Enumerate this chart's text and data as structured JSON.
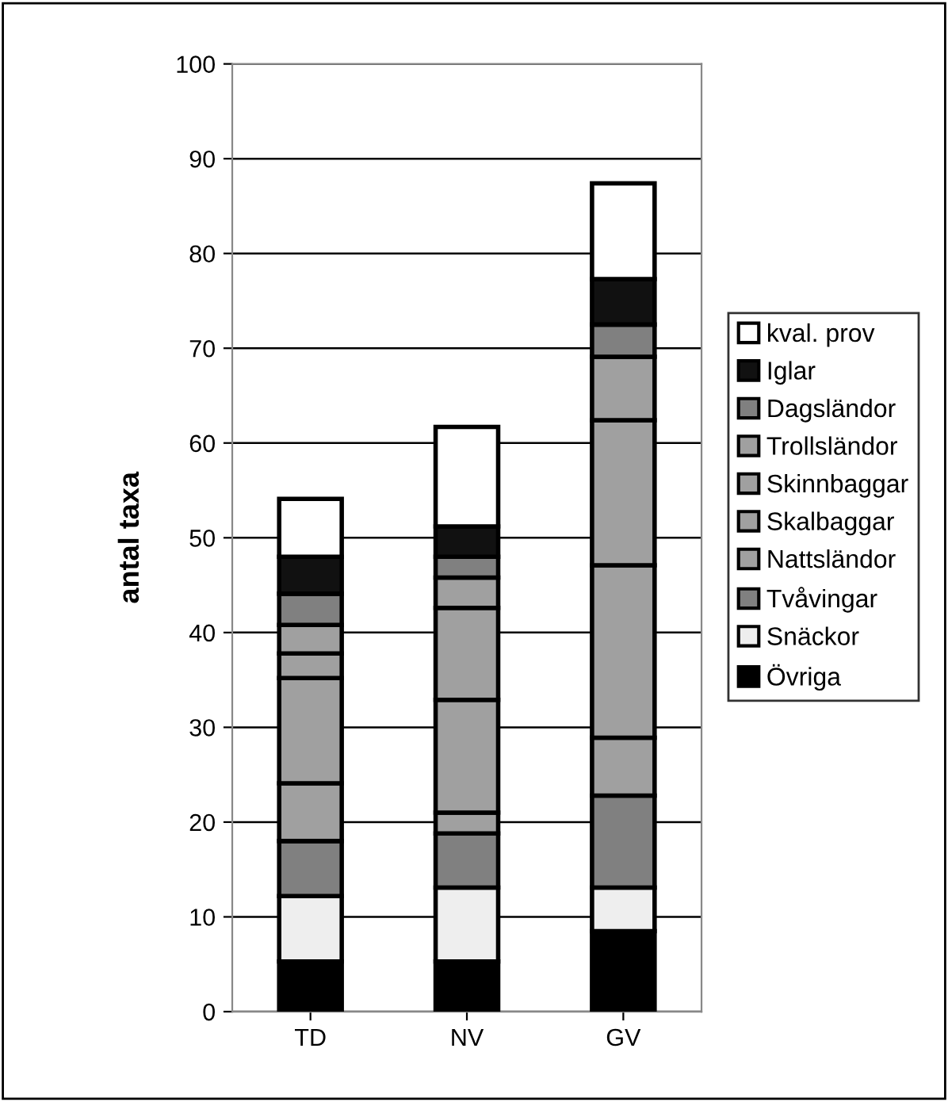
{
  "chart_data": {
    "type": "bar",
    "stacked": true,
    "ylabel": "antal taxa",
    "categories": [
      "TD",
      "NV",
      "GV"
    ],
    "series": [
      {
        "name": "Övriga",
        "color": "#000000",
        "values": [
          5.3,
          5.3,
          8.5
        ]
      },
      {
        "name": "Snäckor",
        "color": "#eeeeee",
        "values": [
          6.9,
          7.8,
          4.6
        ]
      },
      {
        "name": "Tvåvingar",
        "color": "#808080",
        "values": [
          5.8,
          5.7,
          9.7
        ]
      },
      {
        "name": "Nattsländor",
        "color": "#a0a0a0",
        "values": [
          6.1,
          2.2,
          6.1
        ]
      },
      {
        "name": "Skalbaggar",
        "color": "#a0a0a0",
        "values": [
          11.1,
          11.9,
          18.2
        ]
      },
      {
        "name": "Skinnbaggar",
        "color": "#a0a0a0",
        "values": [
          2.6,
          9.7,
          15.3
        ]
      },
      {
        "name": "Trollsländor",
        "color": "#a0a0a0",
        "values": [
          3.0,
          3.2,
          6.7
        ]
      },
      {
        "name": "Dagsländor",
        "color": "#808080",
        "values": [
          3.3,
          2.2,
          3.4
        ]
      },
      {
        "name": "Iglar",
        "color": "#111111",
        "values": [
          3.9,
          3.2,
          4.8
        ]
      },
      {
        "name": "kval. prov",
        "color": "#ffffff",
        "values": [
          6.1,
          10.5,
          10.1
        ]
      }
    ],
    "ylim": [
      0,
      100
    ],
    "yticks": [
      0,
      10,
      20,
      30,
      40,
      50,
      60,
      70,
      80,
      90,
      100
    ],
    "grid": "y",
    "legend": "right"
  }
}
